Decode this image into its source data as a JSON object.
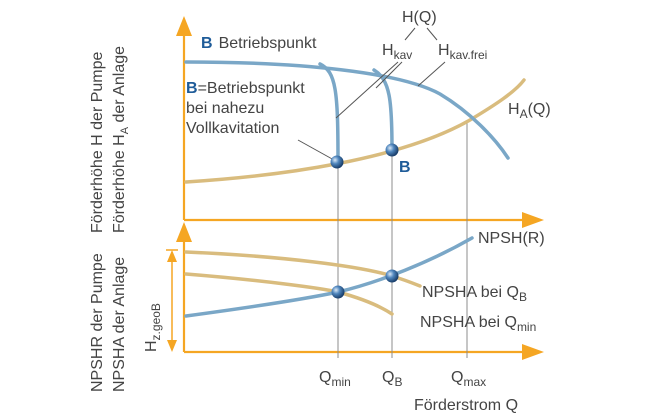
{
  "colors": {
    "axis": "#f5a623",
    "pump_curve": "#7aa7c7",
    "system_curve": "#d9bc7e",
    "operating_point": "#1f5c99",
    "guide": "#8c8c8c",
    "text": "#444444"
  },
  "yaxis_label_top": "Förderhöhe H der Pumpe",
  "yaxis_label_top_2": "Förderhöhe H",
  "yaxis_label_top_2_sub": "A",
  "yaxis_label_top_2_tail": " der Anlage",
  "yaxis_label_bottom": "NPSHR der Pumpe",
  "yaxis_label_bottom_2": "NPSHA der Anlage",
  "xaxis_label": "Förderstrom Q",
  "upper": {
    "b_letter": "B",
    "b_text": "Betriebspunkt",
    "b2_letter": "B",
    "b2_text": "=Betriebspunkt",
    "b2_line2": "bei nahezu",
    "b2_line3": "Vollkavitation",
    "hq_label": "H(Q)",
    "hkav_base": "H",
    "hkav_sub": "kav",
    "hkavfrei_base": "H",
    "hkavfrei_sub": "kav.frei",
    "ha_base": "H",
    "ha_sub": "A",
    "ha_tail": "(Q)",
    "b_marker": "B"
  },
  "lower": {
    "npshr": "NPSH(R)",
    "npsha_qb": "NPSHA bei Q",
    "npsha_qb_sub": "B",
    "npsha_qmin": "NPSHA bei Q",
    "npsha_qmin_sub": "min",
    "hz_base": "H",
    "hz_sub": "z.geoB"
  },
  "ticks": {
    "qmin_base": "Q",
    "qmin_sub": "min",
    "qb_base": "Q",
    "qb_sub": "B",
    "qmax_base": "Q",
    "qmax_sub": "max"
  }
}
